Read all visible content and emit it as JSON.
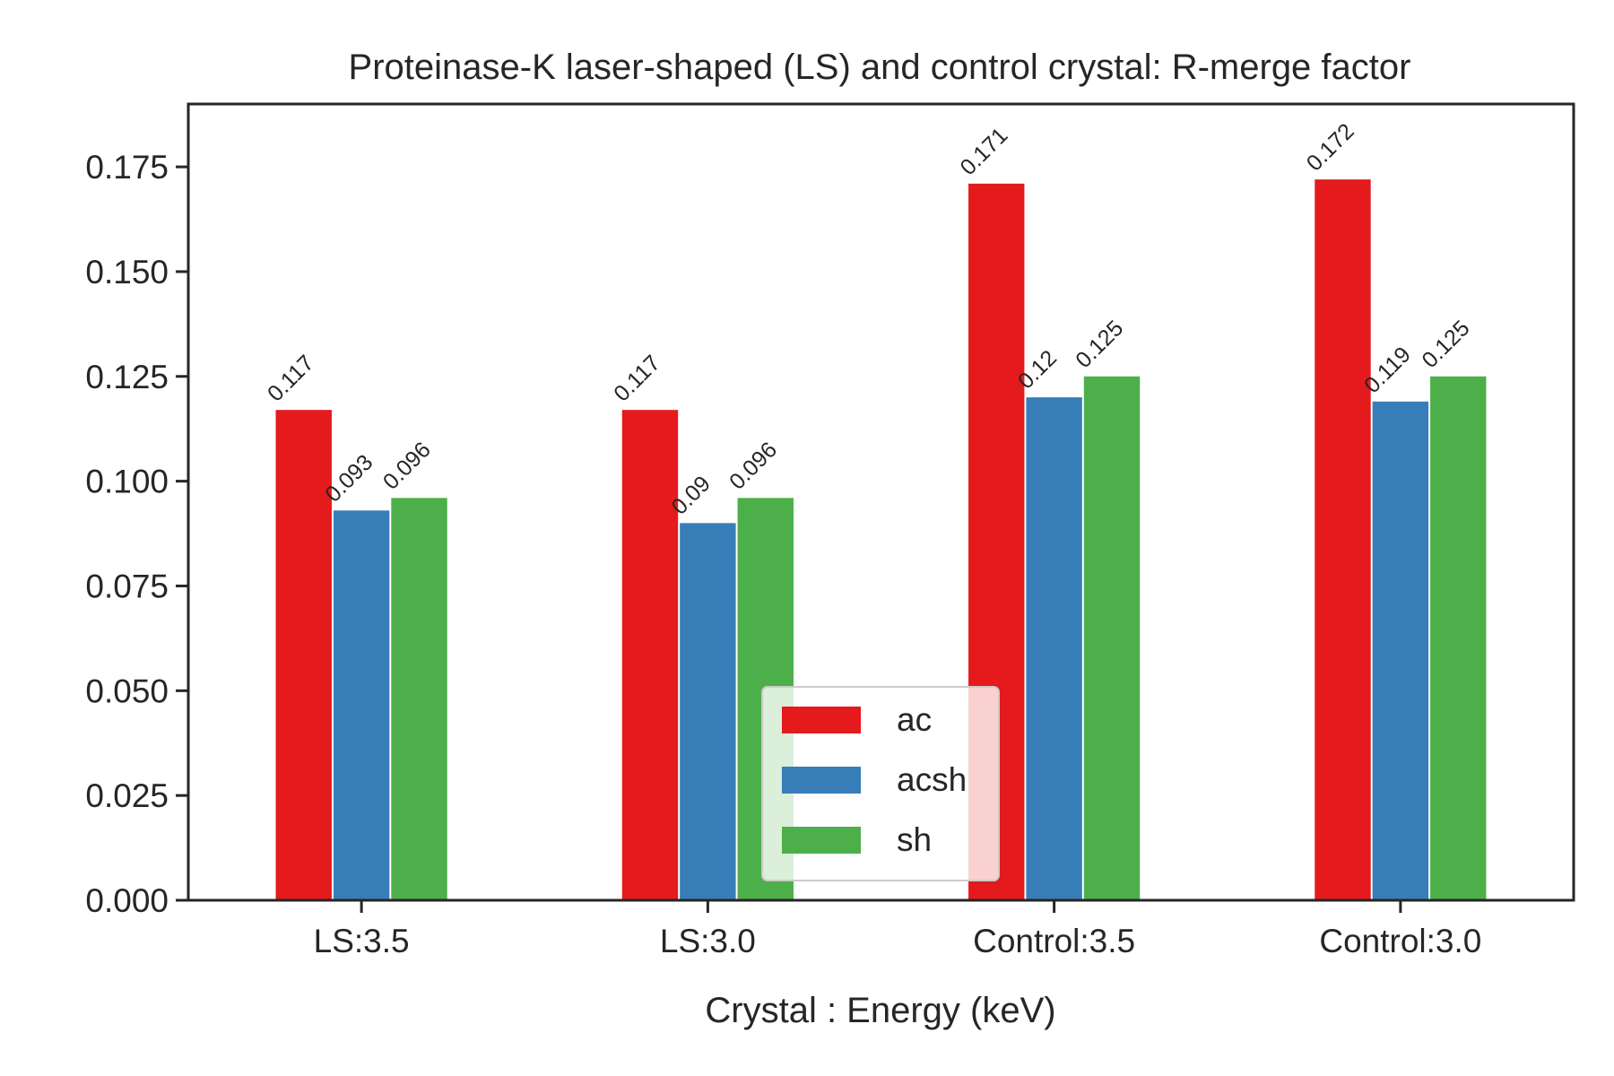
{
  "chart_data": {
    "type": "bar",
    "title": "Proteinase-K laser-shaped (LS) and control crystal: R-merge factor",
    "xlabel": "Crystal : Energy (keV)",
    "ylabel": "",
    "categories": [
      "LS:3.5",
      "LS:3.0",
      "Control:3.5",
      "Control:3.0"
    ],
    "series": [
      {
        "name": "ac",
        "color": "#e41a1c",
        "values": [
          0.117,
          0.117,
          0.171,
          0.172
        ],
        "labels": [
          "0.117",
          "0.117",
          "0.171",
          "0.172"
        ]
      },
      {
        "name": "acsh",
        "color": "#377eb8",
        "values": [
          0.093,
          0.09,
          0.12,
          0.119
        ],
        "labels": [
          "0.093",
          "0.09",
          "0.12",
          "0.119"
        ]
      },
      {
        "name": "sh",
        "color": "#4daf4a",
        "values": [
          0.096,
          0.096,
          0.125,
          0.125
        ],
        "labels": [
          "0.096",
          "0.096",
          "0.125",
          "0.125"
        ]
      }
    ],
    "ylim": [
      0,
      0.19
    ],
    "yticks": [
      "0.000",
      "0.025",
      "0.050",
      "0.075",
      "0.100",
      "0.125",
      "0.150",
      "0.175"
    ],
    "grid": false,
    "legend": "lower-center"
  }
}
